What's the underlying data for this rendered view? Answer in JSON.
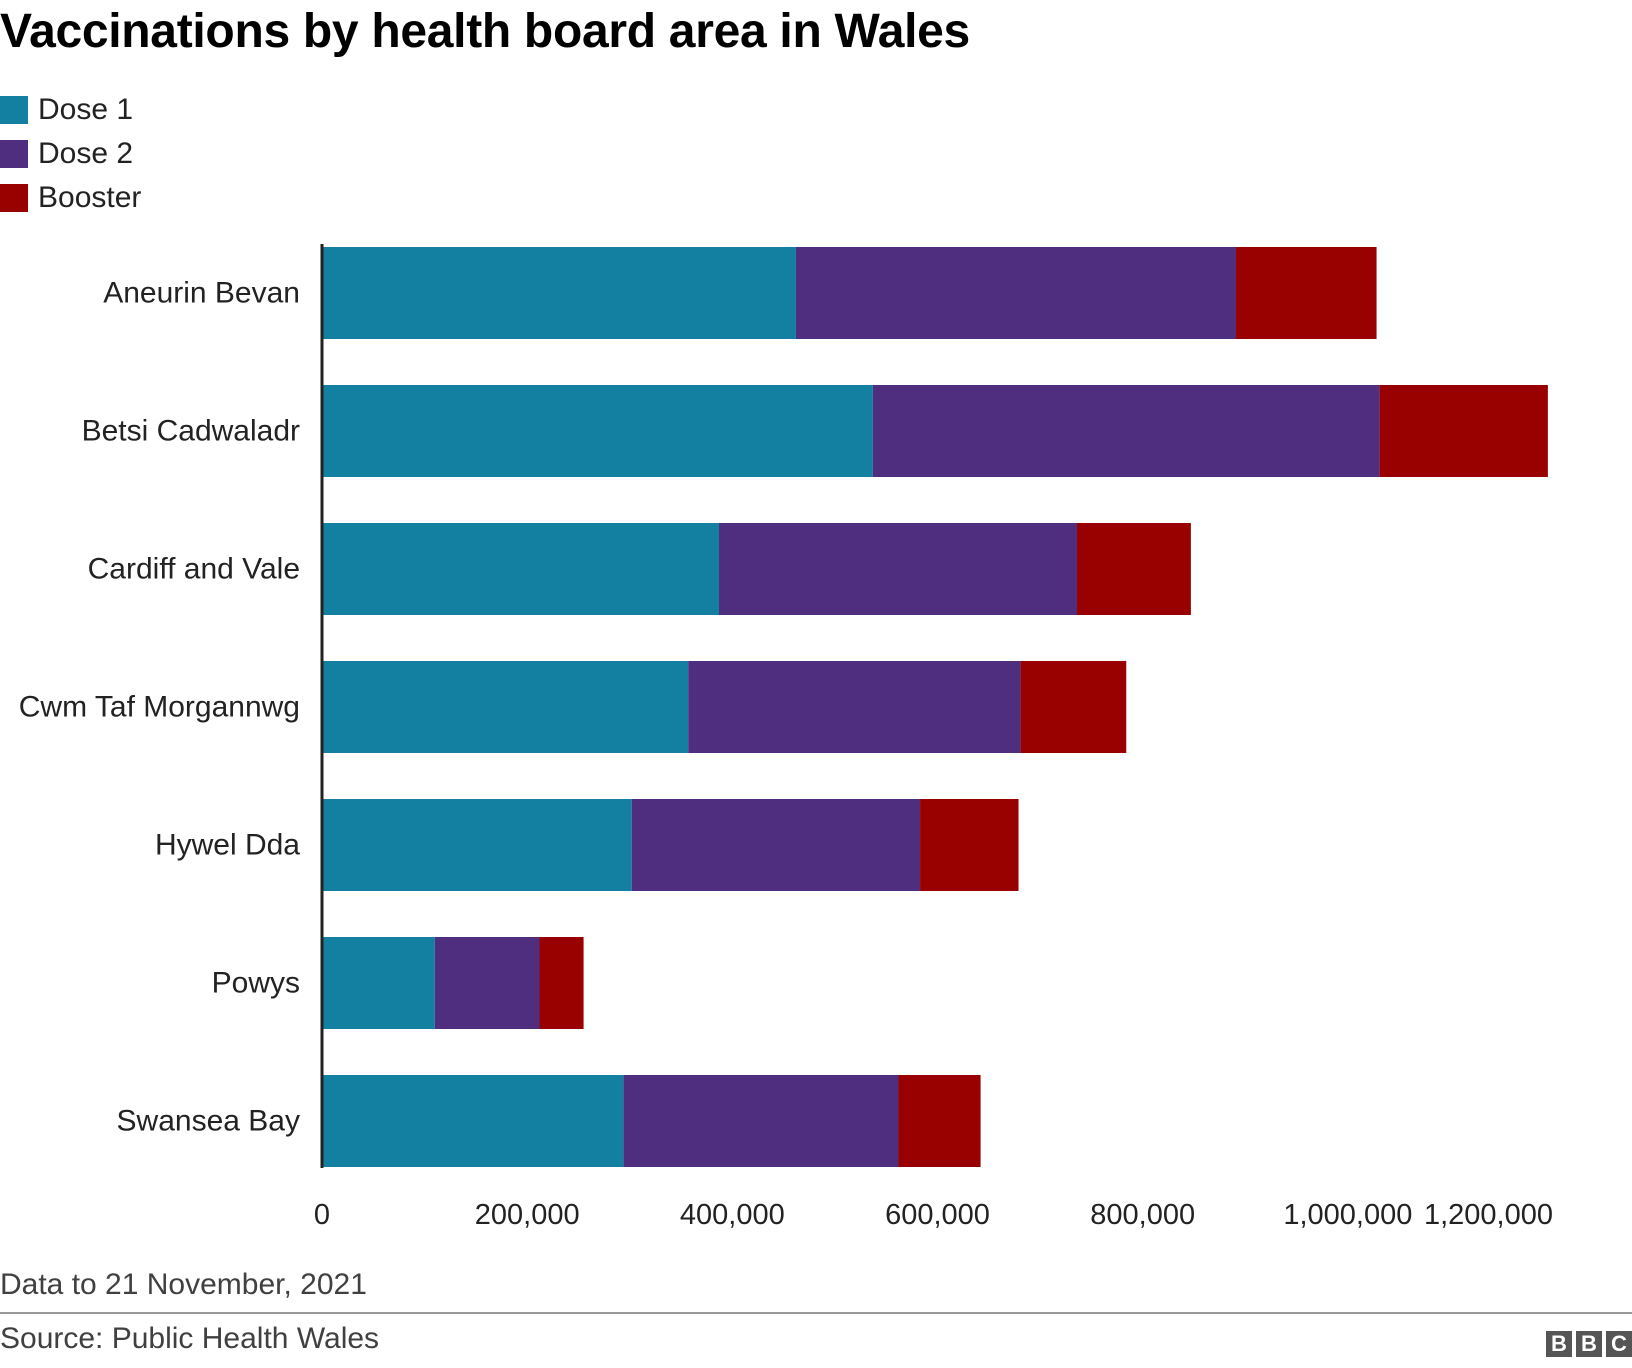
{
  "chart_data": {
    "type": "bar",
    "orientation": "horizontal",
    "stacked": true,
    "title": "Vaccinations by health board area in Wales",
    "categories": [
      "Aneurin Bevan",
      "Betsi Cadwaladr",
      "Cardiff and Vale",
      "Cwm Taf Morgannwg",
      "Hywel Dda",
      "Powys",
      "Swansea Bay"
    ],
    "series": [
      {
        "name": "Dose 1",
        "color": "#1380a1",
        "values": [
          462000,
          537000,
          387000,
          357000,
          302000,
          110000,
          294000
        ]
      },
      {
        "name": "Dose 2",
        "color": "#4f2d7f",
        "values": [
          429000,
          494000,
          349000,
          324000,
          281000,
          102000,
          268000
        ]
      },
      {
        "name": "Booster",
        "color": "#990000",
        "values": [
          137000,
          164000,
          111000,
          103000,
          96000,
          43000,
          80000
        ]
      }
    ],
    "xlim": [
      0,
      1200000
    ],
    "xticks": [
      0,
      200000,
      400000,
      600000,
      800000,
      1000000,
      1200000
    ],
    "xtick_labels": [
      "0",
      "200,000",
      "400,000",
      "600,000",
      "800,000",
      "1,000,000",
      "1,200,000"
    ],
    "grid": false,
    "legend_position": "top-left",
    "footnote": "Data to 21 November, 2021",
    "source": "Source: Public Health Wales"
  },
  "branding": {
    "logo": [
      "B",
      "B",
      "C"
    ]
  }
}
